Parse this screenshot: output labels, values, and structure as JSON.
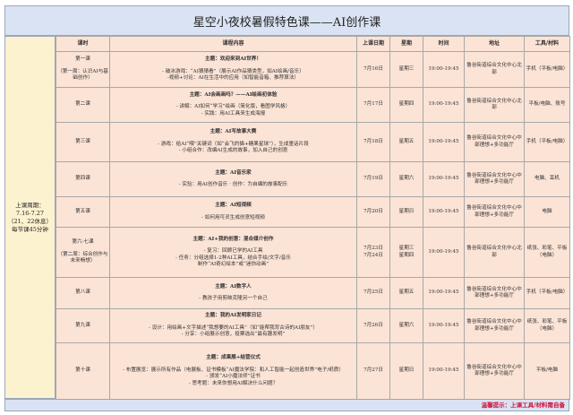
{
  "title": "星空小夜校暑假特色课——AI创作课",
  "side_note": [
    "上课周期：",
    "7.16-7.27",
    "（21、22休息）",
    "每节课45分钟"
  ],
  "headers": [
    "课时",
    "课程内容",
    "上课日期",
    "星期",
    "时间",
    "地址",
    "工具/材料"
  ],
  "rows": [
    {
      "lesson": "第一课",
      "sub": "（第一周：认识AI与基础创作）",
      "theme": "主题：欢迎来到AI世界！",
      "content": [
        "- 破冰游戏：“AI猜猜看”（展示AI作品猜类型，如AI绘画/音乐）",
        "-视频+讨论：AI在生活中的应用（如智能音箱、推荐算法）"
      ],
      "date": "7月16日",
      "weekday": "星期三",
      "time": "19:00-19:45",
      "address": "鲁谷街道综合文化中心北部",
      "tools": "手机（平板/电脑）"
    },
    {
      "lesson": "第二课",
      "sub": "",
      "theme": "主题：AI会画画吗？——AI绘画初体验",
      "content": [
        "- 讲解：AI如何“学习”绘画（简化版，看图学风格）",
        "- 实践：用AI工具来生成海报"
      ],
      "date": "7月17日",
      "weekday": "星期四",
      "time": "19:00-19:45",
      "address": "鲁谷街道综合文化中心北部",
      "tools": "平板/电脑、账号"
    },
    {
      "lesson": "第三课",
      "sub": "",
      "theme": "主题：AI写故事大赛",
      "content": [
        "- 游戏：给AI“喂”关键词（如“会飞的猫+糖果星球”），生成童话片段",
        "- 小组合作：改编AI生成的故事，加入自己的创意"
      ],
      "date": "7月18日",
      "weekday": "星期五",
      "time": "19:00-19:45",
      "address": "鲁谷街道综合文化中心中部理想+多功能厅",
      "tools": "手机（平板/电脑）"
    },
    {
      "lesson": "第四课",
      "sub": "",
      "theme": "主题：AI音乐家",
      "content": [
        "- 实验：用AI创作音乐 · 创作：为自编的故事配乐"
      ],
      "date": "7月19日",
      "weekday": "星期六",
      "time": "19:00-19:45",
      "address": "鲁谷街道综合文化中心中部理想+多功能厅",
      "tools": "电脑、耳机"
    },
    {
      "lesson": "第五课",
      "sub": "",
      "theme": "主题：AI短视频",
      "content": [
        "- 如何用可灵生成创意短视频"
      ],
      "date": "7月20日",
      "weekday": "星期日",
      "time": "19:00-19:45",
      "address": "鲁谷街道综合文化中心中部理想+多功能厅",
      "tools": "电脑"
    },
    {
      "lesson": "第六-七课",
      "sub": "（第二周：综合创作与未来畅想）",
      "theme": "主题：AI+我的创意：混合媒介创作",
      "content": [
        "- 复习：回顾已学的AI工具",
        "- 任务：分组选择1-2种AI工具，结合手绘/文字/音乐",
        "制作“AI奇幻绘本”或“迷你动画”"
      ],
      "date": "7月23日\n7月24日",
      "weekday": "星期三\n星期四",
      "time": "19:00-19:45",
      "address": "鲁谷街道综合文化中心北部",
      "tools": "纸张、彩笔、平板（电脑）"
    },
    {
      "lesson": "第八课",
      "sub": "",
      "theme": "主题：AI数字人",
      "content": [
        "- 教孩子用剪映克隆另一个自己"
      ],
      "date": "7月25日",
      "weekday": "星期五",
      "time": "19:00-19:45",
      "address": "鲁谷街道综合文化中心中部理想+多功能厅",
      "tools": "手机（平板/电脑）"
    },
    {
      "lesson": "第九课",
      "sub": "",
      "theme": "主题：我的AI发明家日记",
      "content": [
        "- 设计：用绘画+文字描述“我想要的AI工具”（如“能帮我背古诗的AI朋友”）",
        "- 分享：小组展示创意，投票选出“最有趣发明”"
      ],
      "date": "7月26日",
      "weekday": "星期六",
      "time": "19:00-19:45",
      "address": "鲁谷街道综合文化中心中部理想+多功能厅",
      "tools": "纸张、彩笔、平板（电脑）"
    },
    {
      "lesson": "第十课",
      "sub": "",
      "theme": "主题：成果展+结营仪式",
      "content": [
        "- 布置展览：展示所有作品（电展板、证书模板“AI魔法学院：和人工智能一起创造世界”电子/纸质）",
        "- 颁发“AI小魔法师”证书",
        "- 思考题：未来你想用AI解决什么问题？"
      ],
      "date": "7月27日",
      "weekday": "星期日",
      "time": "19:00-19:45",
      "address": "鲁谷街道综合文化中心中部理想+多功能厅",
      "tools": "平板/电脑"
    }
  ],
  "footer": "温馨提示：上课工具/材料需自备"
}
